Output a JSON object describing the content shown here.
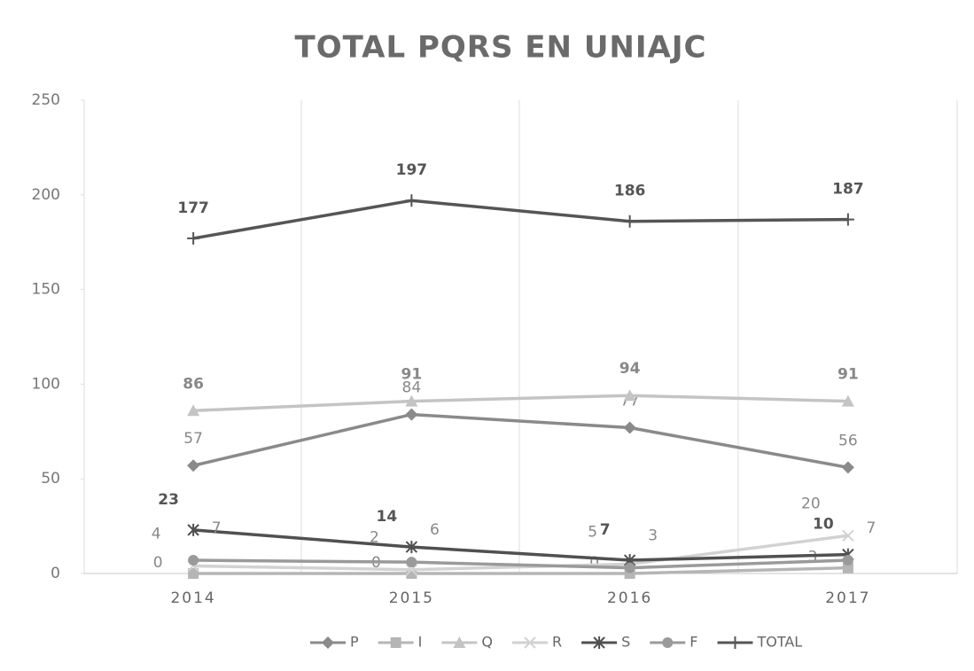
{
  "chart_data": {
    "type": "line",
    "title": "TOTAL PQRS EN UNIAJC",
    "categories": [
      "2014",
      "2015",
      "2016",
      "2017"
    ],
    "series": [
      {
        "name": "P",
        "color": "#8a8a8a",
        "marker": "diamond",
        "values": [
          57,
          84,
          77,
          56
        ]
      },
      {
        "name": "I",
        "color": "#b5b5b5",
        "marker": "square",
        "values": [
          0,
          0,
          0,
          3
        ]
      },
      {
        "name": "Q",
        "color": "#c4c4c4",
        "marker": "triangle",
        "values": [
          86,
          91,
          94,
          91
        ]
      },
      {
        "name": "R",
        "color": "#d2d2d2",
        "marker": "x",
        "values": [
          4,
          2,
          5,
          20
        ]
      },
      {
        "name": "S",
        "color": "#505050",
        "marker": "star",
        "values": [
          23,
          14,
          7,
          10
        ]
      },
      {
        "name": "F",
        "color": "#9a9a9a",
        "marker": "circle",
        "values": [
          7,
          6,
          3,
          7
        ]
      },
      {
        "name": "TOTAL",
        "color": "#555555",
        "marker": "plus",
        "values": [
          177,
          197,
          186,
          187
        ]
      }
    ],
    "ylim": [
      0,
      250
    ],
    "yticks": [
      0,
      50,
      100,
      150,
      200,
      250
    ],
    "legend": "bottom"
  }
}
